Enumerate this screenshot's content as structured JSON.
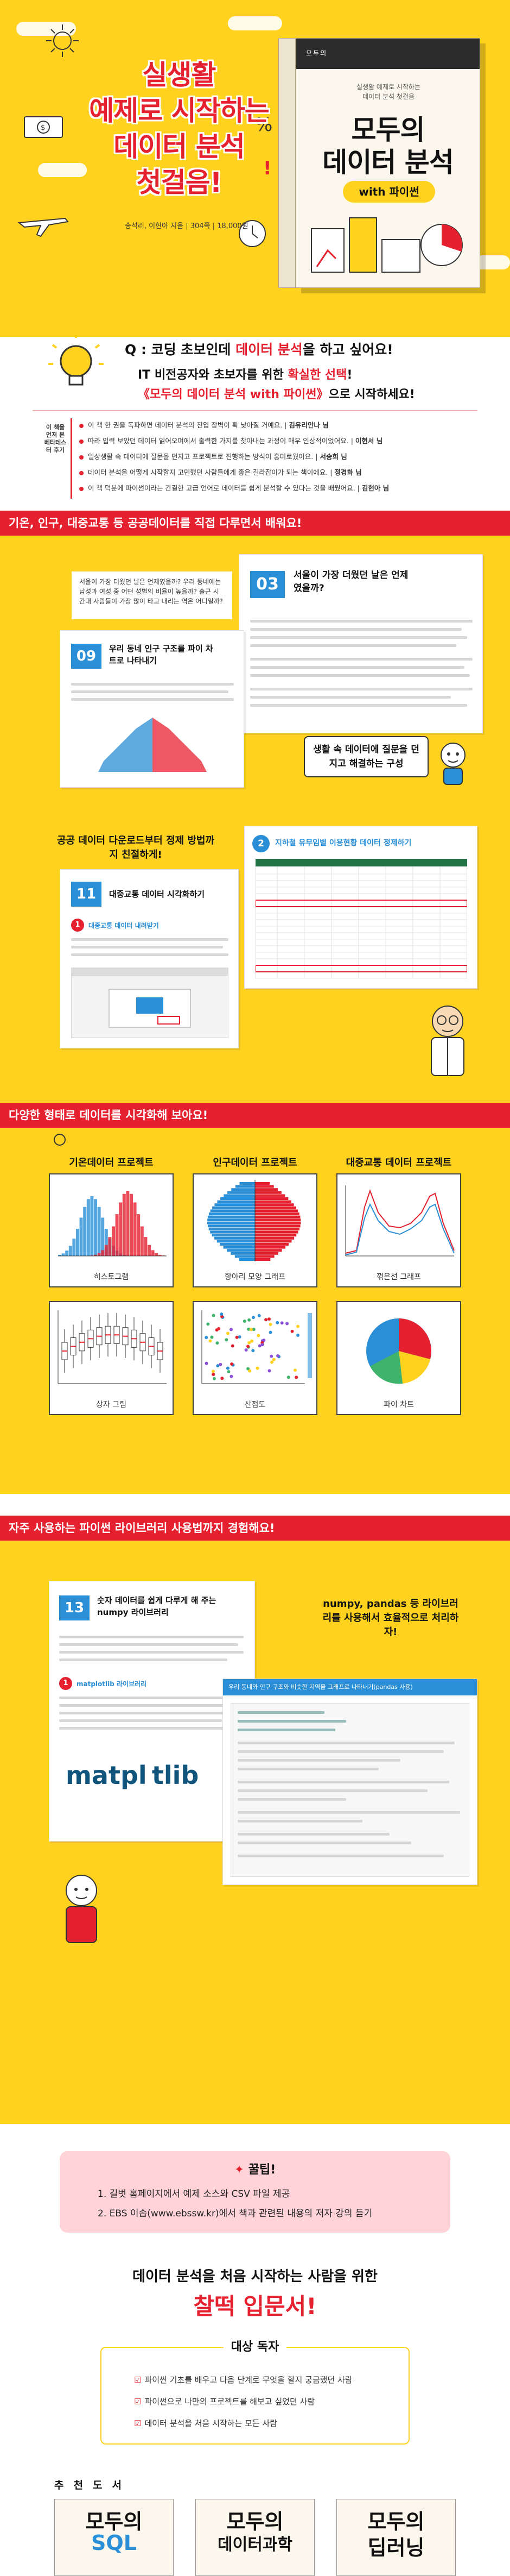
{
  "hero": {
    "title_lines": [
      "실생활",
      "예제로 시작하는",
      "데이터 분석",
      "첫걸음!"
    ],
    "authors": "송석리, 이현아 지음 | 304쪽 | 18,000원"
  },
  "book": {
    "series": "모두의",
    "subtitle_line1": "실생활 예제로 시작하는",
    "subtitle_line2": "데이터 분석 첫걸음",
    "title_line1": "모두의",
    "title_line2": "데이터 분석",
    "with": "with 파이썬"
  },
  "q": {
    "prefix": "Q : 코딩 초보인데 ",
    "highlight": "데이터 분석",
    "suffix": "을 하고 싶어요!",
    "line1_a": "IT 비전공자와 초보자를 위한 ",
    "line1_b": "확실한 선택",
    "line1_c": "!",
    "line2_a": "《모두의 데이터 분석 with 파이썬》",
    "line2_b": "으로 시작하세요!"
  },
  "reviews": {
    "tag": "이 책을 먼저 본 베타테스터 후기",
    "items": [
      {
        "text": "이 책 한 권을 독파하면 데이터 분석의 진입 장벽이 확 낮아질 거예요.",
        "name": "김유리안나 님"
      },
      {
        "text": "따라 입력 보았던 데이터 읽어오며에서 출력한 가지를 찾아내는 과정이 매우 인상적이었어요.",
        "name": "이현서 님"
      },
      {
        "text": "일상생활 속 데이터에 질문을 던지고 프로젝트로 진행하는 방식이 흥미로웠어요.",
        "name": "서송희 님"
      },
      {
        "text": "데이터 분석을 어떻게 시작할지 고민했던 사람들에게 좋은 길라잡이가 되는 책이에요.",
        "name": "정경화 님"
      },
      {
        "text": "이 책 덕분에 파이썬이라는 간결한 고급 언어로 데이터를 쉽게 분석할 수 있다는 것을 배웠어요.",
        "name": "김현아 님"
      }
    ]
  },
  "section1": {
    "header": "기온, 인구, 대중교통 등 공공데이터를 직접 다루면서 배워요!",
    "card1": {
      "num": "03",
      "title": "서울이 가장 더웠던 날은 언제였을까?",
      "note": "서울이 가장 더웠던 날은 언제였을까? 우리 동네에는 남성과 여성 중 어떤 성별의 비율이 높을까? 출근 시간대 사람들이 가장 많이 타고 내리는 역은 어디일까?"
    },
    "card2": {
      "num": "09",
      "title": "우리 동네 인구 구조를 파이 차트로 나타내기"
    },
    "callout1": "생활 속 데이터에 질문을 던지고 해결하는 구성",
    "card3": {
      "num": "2",
      "title": "지하철 유무임별 이용현황 데이터 정제하기"
    },
    "callout2": "공공 데이터 다운로드부터 정제 방법까지 친절하게!",
    "card4": {
      "num": "11",
      "title": "대중교통 데이터 시각화하기",
      "sub": "대중교통 데이터 내려받기"
    }
  },
  "section2": {
    "header": "다양한 형태로 데이터를 시각화해 보아요!",
    "projects": [
      "기온데이터 프로젝트",
      "인구데이터 프로젝트",
      "대중교통 데이터 프로젝트"
    ],
    "charts": [
      {
        "name": "히스토그램"
      },
      {
        "name": "항아리 모양 그래프"
      },
      {
        "name": "꺾은선 그래프"
      },
      {
        "name": "상자 그림"
      },
      {
        "name": "산점도"
      },
      {
        "name": "파이 차트"
      }
    ]
  },
  "section3": {
    "header": "자주 사용하는 파이썬 라이브러리 사용법까지 경험해요!",
    "card": {
      "num": "13",
      "title": "숫자 데이터를 쉽게 다루게 해 주는 numpy 라이브러리",
      "sub": "matplotlib 라이브러리",
      "logo": "matpl tlib"
    },
    "callout": "numpy, pandas 등 라이브러리를 사용해서 효율적으로 처리하자!",
    "code_title": "우리 동네와 인구 구조와 비슷한 지역을 그래프로 나타내기(pandas 사용)"
  },
  "tip": {
    "title": "꿀팁!",
    "items": [
      "1. 길벗 홈페이지에서 예제 소스와 CSV 파일 제공",
      "2. EBS 이솝(www.ebssw.kr)에서 책과 관련된 내용의 저자 강의 듣기"
    ]
  },
  "intro": {
    "line1": "데이터 분석을 처음 시작하는 사람을 위한",
    "line2": "찰떡 입문서!"
  },
  "target": {
    "title": "대상 독자",
    "items": [
      "파이썬 기초를 배우고 다음 단계로 무엇을 할지 궁금했던 사람",
      "파이썬으로 나만의 프로젝트를 해보고 싶었던 사람",
      "데이터 분석을 처음 시작하는 모든 사람"
    ]
  },
  "recommend": {
    "title": "추천도서",
    "books": [
      {
        "line1": "모두의",
        "line2": "SQL"
      },
      {
        "line1": "모두의",
        "line2": "데이터과학"
      },
      {
        "line1": "모두의",
        "line2": "딥러닝"
      }
    ]
  },
  "colors": {
    "yellow": "#ffd21f",
    "red": "#e5202f",
    "blue": "#2a8fd6"
  }
}
